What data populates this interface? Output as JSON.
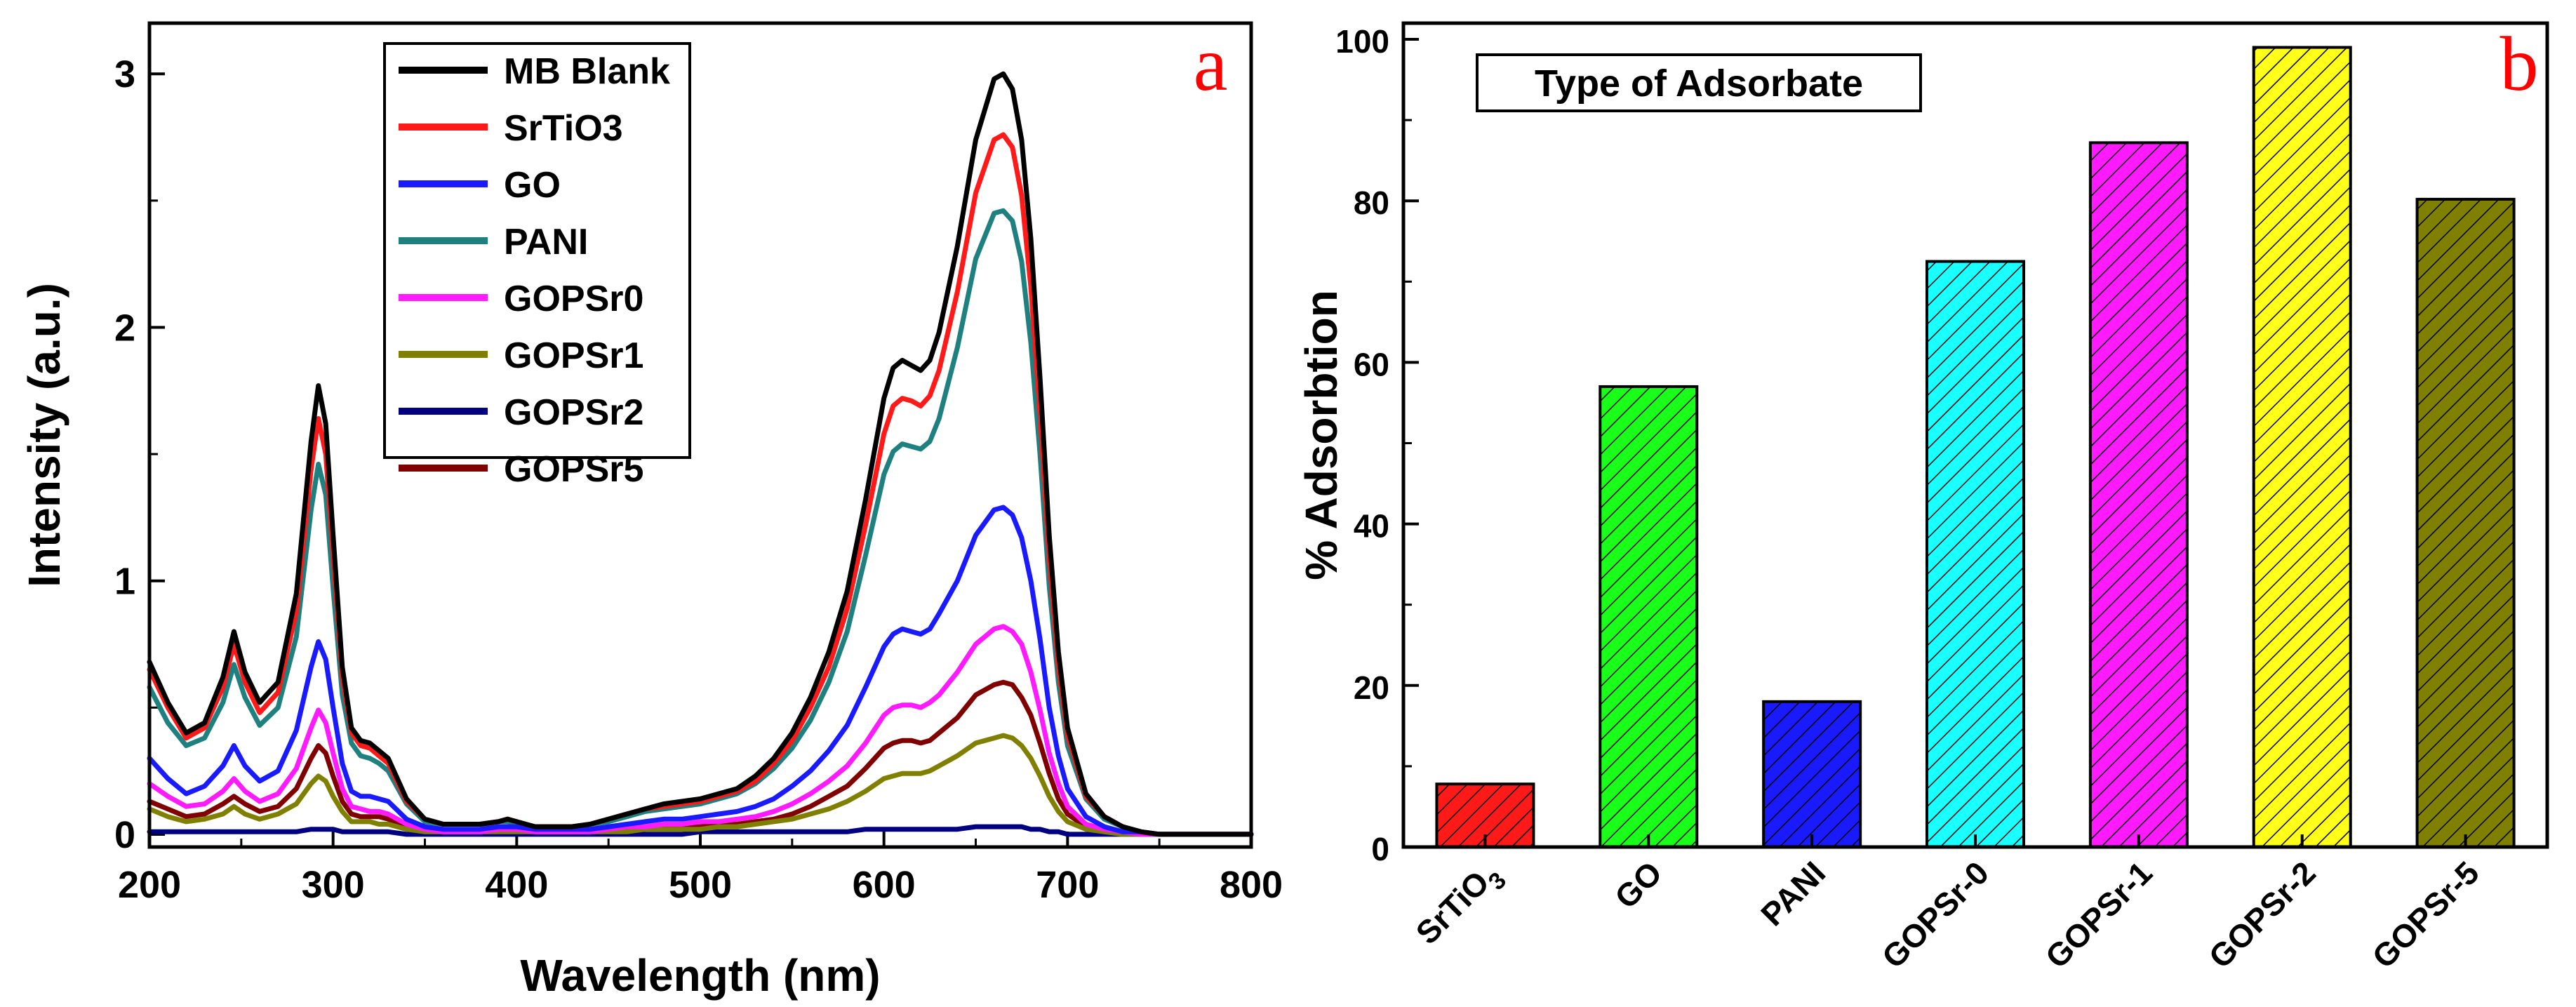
{
  "colors": {
    "MB Blank": "#000000",
    "SrTiO3": "#ff1a1a",
    "GO": "#1a1aff",
    "PANI": "#1f8080",
    "GOPSr0": "#ff1aff",
    "GOPSr1": "#808000",
    "GOPSr2": "#000080",
    "GOPSr5": "#800000",
    "bar_SrTiO3": "#ff1a1a",
    "bar_GO": "#1aff1a",
    "bar_PANI": "#1a1aff",
    "bar_GOPSr-0": "#1affff",
    "bar_GOPSr-1": "#ff1aff",
    "bar_GOPSr-2": "#ffff1a",
    "bar_GOPSr-5": "#808000"
  },
  "chart_data": [
    {
      "type": "line",
      "panel_label": "a",
      "xlabel": "Wavelength (nm)",
      "ylabel": "Intensity (a.u.)",
      "xlim": [
        200,
        800
      ],
      "ylim": [
        -0.05,
        3.2
      ],
      "xticks": [
        "200",
        "300",
        "400",
        "500",
        "600",
        "700",
        "800"
      ],
      "yticks": [
        "0",
        "1",
        "2",
        "3"
      ],
      "legend_position": "top-center",
      "x": [
        200,
        210,
        220,
        230,
        240,
        246,
        252,
        260,
        270,
        280,
        288,
        292,
        296,
        300,
        305,
        310,
        315,
        320,
        325,
        330,
        340,
        350,
        360,
        370,
        380,
        390,
        395,
        400,
        410,
        420,
        430,
        440,
        450,
        460,
        470,
        480,
        490,
        500,
        510,
        520,
        530,
        540,
        550,
        560,
        570,
        580,
        590,
        600,
        605,
        610,
        615,
        620,
        625,
        630,
        640,
        650,
        660,
        665,
        670,
        675,
        680,
        685,
        690,
        695,
        700,
        710,
        720,
        730,
        740,
        750,
        760,
        780,
        800
      ],
      "series": [
        {
          "name": "MB Blank",
          "values": [
            0.68,
            0.52,
            0.4,
            0.44,
            0.62,
            0.8,
            0.64,
            0.52,
            0.6,
            0.95,
            1.55,
            1.77,
            1.62,
            1.18,
            0.66,
            0.42,
            0.37,
            0.36,
            0.33,
            0.3,
            0.14,
            0.06,
            0.04,
            0.04,
            0.04,
            0.05,
            0.06,
            0.05,
            0.03,
            0.03,
            0.03,
            0.04,
            0.06,
            0.08,
            0.1,
            0.12,
            0.13,
            0.14,
            0.16,
            0.18,
            0.23,
            0.3,
            0.4,
            0.54,
            0.72,
            0.96,
            1.32,
            1.72,
            1.84,
            1.87,
            1.85,
            1.83,
            1.87,
            1.98,
            2.32,
            2.74,
            2.98,
            3.0,
            2.94,
            2.74,
            2.35,
            1.8,
            1.18,
            0.72,
            0.42,
            0.16,
            0.07,
            0.03,
            0.01,
            0.0,
            0.0,
            0.0,
            0.0
          ]
        },
        {
          "name": "SrTiO3",
          "values": [
            0.65,
            0.5,
            0.38,
            0.42,
            0.58,
            0.75,
            0.6,
            0.48,
            0.56,
            0.88,
            1.44,
            1.64,
            1.5,
            1.1,
            0.62,
            0.4,
            0.35,
            0.34,
            0.31,
            0.28,
            0.13,
            0.06,
            0.04,
            0.04,
            0.04,
            0.05,
            0.06,
            0.05,
            0.03,
            0.03,
            0.03,
            0.04,
            0.06,
            0.08,
            0.1,
            0.11,
            0.12,
            0.13,
            0.15,
            0.17,
            0.21,
            0.28,
            0.37,
            0.5,
            0.66,
            0.89,
            1.22,
            1.58,
            1.69,
            1.72,
            1.71,
            1.69,
            1.73,
            1.83,
            2.14,
            2.53,
            2.74,
            2.76,
            2.71,
            2.52,
            2.16,
            1.66,
            1.09,
            0.66,
            0.39,
            0.15,
            0.07,
            0.03,
            0.01,
            0.0,
            0.0,
            0.0,
            0.0
          ]
        },
        {
          "name": "GO",
          "values": [
            0.3,
            0.22,
            0.16,
            0.19,
            0.27,
            0.35,
            0.27,
            0.21,
            0.25,
            0.41,
            0.66,
            0.76,
            0.69,
            0.5,
            0.28,
            0.17,
            0.15,
            0.15,
            0.14,
            0.13,
            0.06,
            0.03,
            0.02,
            0.02,
            0.02,
            0.03,
            0.03,
            0.03,
            0.02,
            0.02,
            0.02,
            0.02,
            0.03,
            0.04,
            0.05,
            0.06,
            0.06,
            0.07,
            0.08,
            0.09,
            0.11,
            0.14,
            0.19,
            0.25,
            0.33,
            0.43,
            0.58,
            0.74,
            0.79,
            0.81,
            0.8,
            0.79,
            0.81,
            0.87,
            1.0,
            1.18,
            1.28,
            1.29,
            1.26,
            1.17,
            1.0,
            0.77,
            0.5,
            0.31,
            0.18,
            0.07,
            0.03,
            0.01,
            0.01,
            0.0,
            0.0,
            0.0,
            0.0
          ]
        },
        {
          "name": "PANI",
          "values": [
            0.58,
            0.44,
            0.35,
            0.38,
            0.52,
            0.67,
            0.54,
            0.43,
            0.5,
            0.78,
            1.28,
            1.46,
            1.34,
            0.97,
            0.55,
            0.36,
            0.31,
            0.3,
            0.28,
            0.25,
            0.12,
            0.05,
            0.04,
            0.04,
            0.04,
            0.05,
            0.05,
            0.04,
            0.03,
            0.03,
            0.03,
            0.04,
            0.05,
            0.07,
            0.09,
            0.1,
            0.11,
            0.12,
            0.14,
            0.16,
            0.2,
            0.26,
            0.34,
            0.45,
            0.6,
            0.8,
            1.1,
            1.42,
            1.51,
            1.54,
            1.53,
            1.52,
            1.55,
            1.64,
            1.92,
            2.27,
            2.45,
            2.46,
            2.42,
            2.26,
            1.94,
            1.5,
            0.98,
            0.6,
            0.35,
            0.14,
            0.06,
            0.03,
            0.01,
            0.0,
            0.0,
            0.0,
            0.0
          ]
        },
        {
          "name": "GOPSr0",
          "values": [
            0.2,
            0.15,
            0.11,
            0.12,
            0.17,
            0.22,
            0.17,
            0.13,
            0.16,
            0.26,
            0.42,
            0.49,
            0.44,
            0.32,
            0.18,
            0.11,
            0.1,
            0.09,
            0.09,
            0.08,
            0.04,
            0.02,
            0.01,
            0.01,
            0.01,
            0.02,
            0.02,
            0.02,
            0.01,
            0.01,
            0.01,
            0.01,
            0.02,
            0.03,
            0.03,
            0.04,
            0.04,
            0.05,
            0.05,
            0.06,
            0.07,
            0.09,
            0.12,
            0.16,
            0.21,
            0.27,
            0.36,
            0.47,
            0.5,
            0.51,
            0.51,
            0.5,
            0.52,
            0.55,
            0.64,
            0.75,
            0.81,
            0.82,
            0.8,
            0.75,
            0.64,
            0.49,
            0.32,
            0.2,
            0.11,
            0.04,
            0.02,
            0.01,
            0.0,
            0.0,
            0.0,
            0.0,
            0.0
          ]
        },
        {
          "name": "GOPSr1",
          "values": [
            0.1,
            0.07,
            0.05,
            0.06,
            0.08,
            0.11,
            0.08,
            0.06,
            0.08,
            0.12,
            0.2,
            0.23,
            0.21,
            0.15,
            0.09,
            0.05,
            0.05,
            0.05,
            0.04,
            0.04,
            0.02,
            0.01,
            0.01,
            0.01,
            0.01,
            0.01,
            0.01,
            0.01,
            0.01,
            0.01,
            0.01,
            0.01,
            0.01,
            0.01,
            0.02,
            0.02,
            0.02,
            0.02,
            0.03,
            0.03,
            0.04,
            0.05,
            0.06,
            0.08,
            0.1,
            0.13,
            0.17,
            0.22,
            0.23,
            0.24,
            0.24,
            0.24,
            0.25,
            0.27,
            0.31,
            0.36,
            0.38,
            0.39,
            0.38,
            0.35,
            0.3,
            0.23,
            0.15,
            0.09,
            0.05,
            0.02,
            0.01,
            0.0,
            0.0,
            0.0,
            0.0,
            0.0,
            0.0
          ]
        },
        {
          "name": "GOPSr2",
          "values": [
            0.01,
            0.01,
            0.01,
            0.01,
            0.01,
            0.01,
            0.01,
            0.01,
            0.01,
            0.01,
            0.02,
            0.02,
            0.02,
            0.02,
            0.01,
            0.01,
            0.01,
            0.01,
            0.01,
            0.01,
            0.0,
            0.0,
            0.0,
            0.0,
            0.0,
            0.0,
            0.0,
            0.0,
            0.0,
            0.0,
            0.0,
            0.0,
            0.0,
            0.0,
            0.0,
            0.0,
            0.0,
            0.01,
            0.01,
            0.01,
            0.01,
            0.01,
            0.01,
            0.01,
            0.01,
            0.01,
            0.02,
            0.02,
            0.02,
            0.02,
            0.02,
            0.02,
            0.02,
            0.02,
            0.02,
            0.03,
            0.03,
            0.03,
            0.03,
            0.03,
            0.02,
            0.02,
            0.01,
            0.01,
            0.0,
            0.0,
            0.0,
            0.0,
            0.0,
            0.0,
            0.0,
            0.0,
            0.0
          ]
        },
        {
          "name": "GOPSr5",
          "values": [
            0.13,
            0.1,
            0.07,
            0.08,
            0.12,
            0.15,
            0.12,
            0.09,
            0.11,
            0.18,
            0.3,
            0.35,
            0.32,
            0.23,
            0.13,
            0.08,
            0.07,
            0.07,
            0.07,
            0.06,
            0.03,
            0.01,
            0.01,
            0.01,
            0.01,
            0.01,
            0.01,
            0.01,
            0.01,
            0.01,
            0.01,
            0.01,
            0.01,
            0.02,
            0.02,
            0.03,
            0.03,
            0.03,
            0.04,
            0.04,
            0.05,
            0.06,
            0.08,
            0.11,
            0.15,
            0.19,
            0.26,
            0.34,
            0.36,
            0.37,
            0.37,
            0.36,
            0.37,
            0.4,
            0.46,
            0.55,
            0.59,
            0.6,
            0.59,
            0.54,
            0.47,
            0.36,
            0.24,
            0.14,
            0.08,
            0.03,
            0.01,
            0.01,
            0.0,
            0.0,
            0.0,
            0.0,
            0.0
          ]
        }
      ]
    },
    {
      "type": "bar",
      "panel_label": "b",
      "title": "Type of Adsorbate",
      "ylabel": "%  Adsorbtion",
      "ylim": [
        0,
        102
      ],
      "yticks": [
        "0",
        "20",
        "40",
        "60",
        "80",
        "100"
      ],
      "categories": [
        "SrTiO",
        "GO",
        "PANI",
        "GOPSr-0",
        "GOPSr-1",
        "GOPSr-2",
        "GOPSr-5"
      ],
      "category_subscripts": [
        "3",
        "",
        "",
        "",
        "",
        "",
        ""
      ],
      "values": [
        7.8,
        57,
        18,
        72.5,
        87.2,
        99,
        80.2
      ],
      "pattern": "diagonal-hatch"
    }
  ]
}
